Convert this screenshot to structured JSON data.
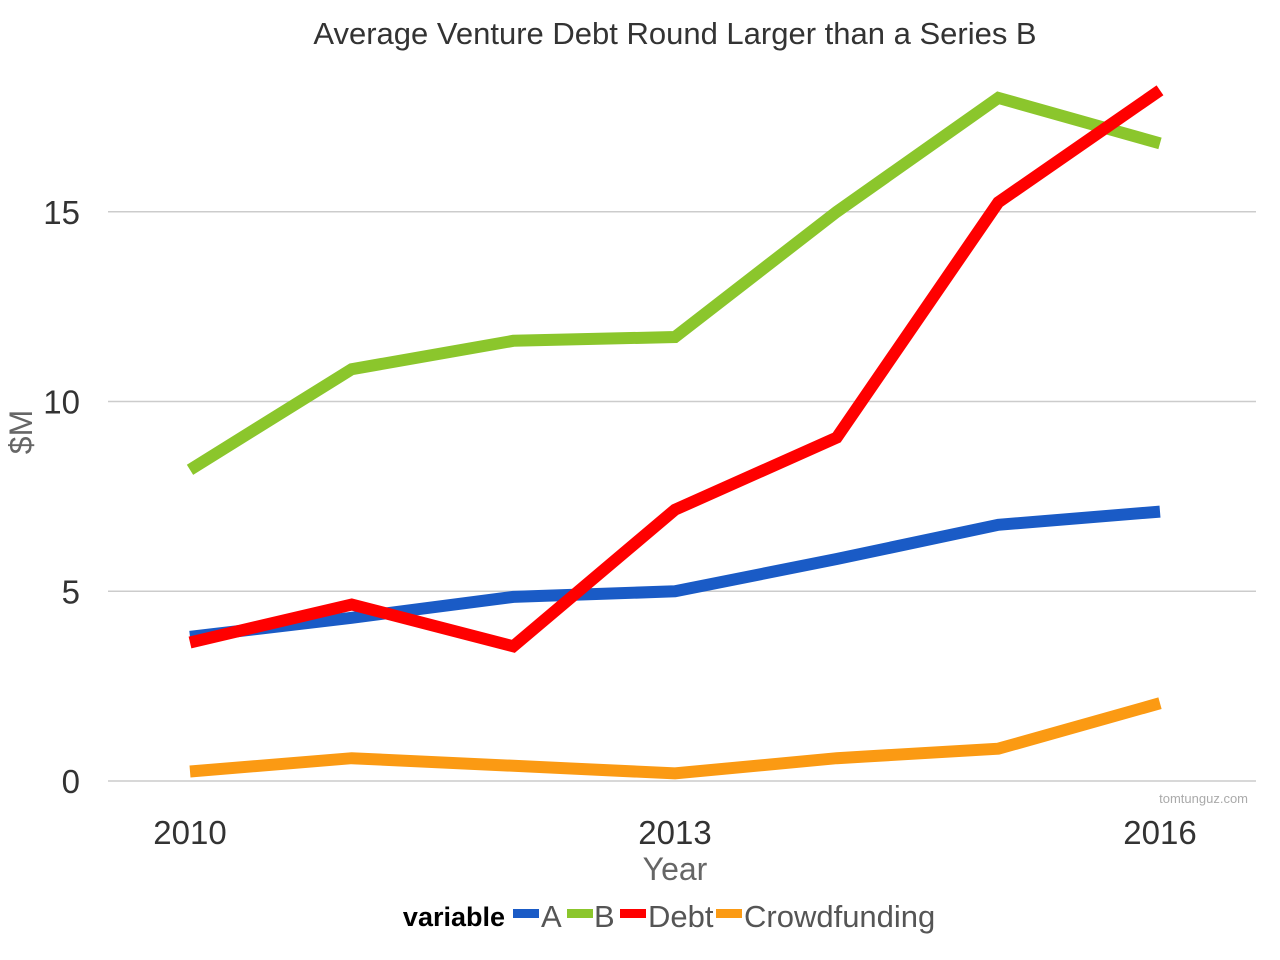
{
  "chart_data": {
    "type": "line",
    "title": "Average Venture Debt Round Larger than a Series B",
    "xlabel": "Year",
    "ylabel": "$M",
    "x": [
      2010,
      2011,
      2012,
      2013,
      2014,
      2015,
      2016
    ],
    "x_ticks": [
      "2010",
      "2013",
      "2016"
    ],
    "y_ticks": [
      "0",
      "5",
      "10",
      "15"
    ],
    "ylim": [
      -0.3,
      19.5
    ],
    "grid": "horizontal",
    "legend_title": "variable",
    "legend_position": "bottom",
    "watermark": "tomtunguz.com",
    "series": [
      {
        "name": "A",
        "color": "#1a5bc6",
        "values": [
          3.8,
          4.3,
          4.85,
          5.0,
          5.85,
          6.75,
          7.1
        ]
      },
      {
        "name": "B",
        "color": "#8bc62c",
        "values": [
          8.2,
          10.85,
          11.6,
          11.7,
          15.0,
          18.0,
          16.8
        ]
      },
      {
        "name": "Debt",
        "color": "#ff0000",
        "values": [
          3.65,
          4.65,
          3.55,
          7.15,
          9.05,
          15.25,
          18.2
        ]
      },
      {
        "name": "Crowdfunding",
        "color": "#fb9a13",
        "values": [
          0.25,
          0.6,
          0.4,
          0.2,
          0.6,
          0.85,
          2.05
        ]
      }
    ]
  }
}
